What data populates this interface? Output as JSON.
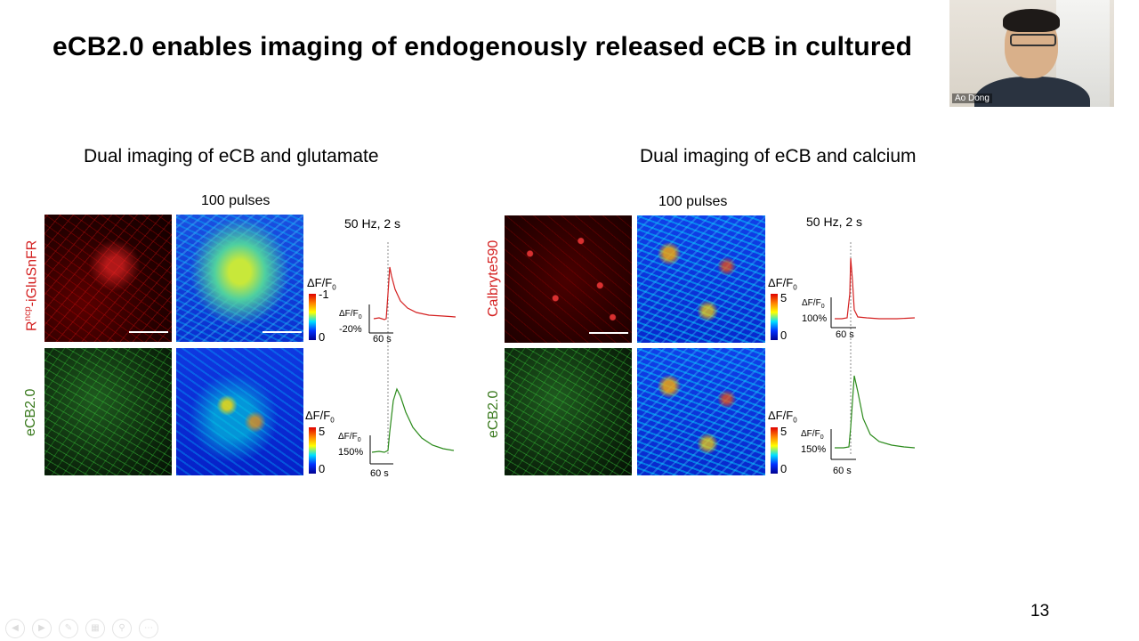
{
  "slide": {
    "title": "eCB2.0 enables imaging of endogenously released eCB in cultured",
    "page_number": "13"
  },
  "left_panel": {
    "heading": "Dual imaging of eCB and glutamate",
    "stim_label": "100 pulses",
    "freq_label": "50 Hz, 2 s",
    "row1_label_sup": "ncp",
    "row1_label_prefix": "R",
    "row1_label_rest": "-iGluSnFR",
    "row2_label": "eCB2.0",
    "cbar1_title": "ΔF/F",
    "cbar1_title_sub": "0",
    "cbar1_max": "-1",
    "cbar1_min": "0",
    "cbar2_title": "ΔF/F",
    "cbar2_title_sub": "0",
    "cbar2_max": "5",
    "cbar2_min": "0",
    "trace1_ylabel": "ΔF/F",
    "trace1_ylabel_sub": "0",
    "trace1_scale": "-20%",
    "trace1_time": "60 s",
    "trace2_ylabel": "ΔF/F",
    "trace2_ylabel_sub": "0",
    "trace2_scale": "150%",
    "trace2_time": "60 s"
  },
  "right_panel": {
    "heading": "Dual imaging of eCB and calcium",
    "stim_label": "100 pulses",
    "freq_label": "50 Hz, 2 s",
    "row1_label": "Calbryte590",
    "row2_label": "eCB2.0",
    "cbar1_title": "ΔF/F",
    "cbar1_title_sub": "0",
    "cbar1_max": "5",
    "cbar1_min": "0",
    "cbar2_title": "ΔF/F",
    "cbar2_title_sub": "0",
    "cbar2_max": "5",
    "cbar2_min": "0",
    "trace1_ylabel": "ΔF/F",
    "trace1_ylabel_sub": "0",
    "trace1_scale": "100%",
    "trace1_time": "60 s",
    "trace2_ylabel": "ΔF/F",
    "trace2_ylabel_sub": "0",
    "trace2_scale": "150%",
    "trace2_time": "60 s"
  },
  "webcam": {
    "participant_name": "Ao Dong"
  },
  "colors": {
    "red_trace": "#d42020",
    "green_trace": "#2a8a1a",
    "red_label": "#d42020",
    "green_label": "#3a7a1e"
  },
  "toolbar_icons": [
    "arrow-left-icon",
    "arrow-right-icon",
    "pen-icon",
    "grid-icon",
    "zoom-icon",
    "more-icon"
  ]
}
